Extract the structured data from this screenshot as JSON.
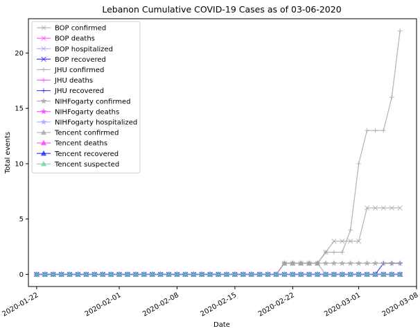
{
  "chart_data": {
    "type": "line",
    "title": "Lebanon Cumulative COVID-19 Cases as of 03-06-2020",
    "xlabel": "Date",
    "ylabel": "Total events",
    "x_range": [
      "2020-01-21",
      "2020-03-08"
    ],
    "ylim": [
      -1.1,
      23.1
    ],
    "x_ticks": [
      "2020-01-22",
      "2020-02-01",
      "2020-02-08",
      "2020-02-15",
      "2020-02-22",
      "2020-03-01",
      "2020-03-08"
    ],
    "y_ticks": [
      0,
      5,
      10,
      15,
      20
    ],
    "grid": false,
    "legend_position": "upper-left",
    "series": [
      {
        "name": "BOP confirmed",
        "color": "#a0a0a0",
        "marker": "x",
        "points": [
          [
            "2020-01-22",
            0
          ],
          [
            "2020-02-20",
            0
          ],
          [
            "2020-02-21",
            1
          ],
          [
            "2020-02-25",
            1
          ],
          [
            "2020-02-26",
            2
          ],
          [
            "2020-02-27",
            3
          ],
          [
            "2020-02-29",
            3
          ],
          [
            "2020-03-01",
            3
          ],
          [
            "2020-03-02",
            6
          ],
          [
            "2020-03-06",
            6
          ]
        ]
      },
      {
        "name": "BOP deaths",
        "color": "#ff33ff",
        "marker": "x",
        "points": [
          [
            "2020-01-22",
            0
          ],
          [
            "2020-03-06",
            0
          ]
        ]
      },
      {
        "name": "BOP hospitalized",
        "color": "#9fa0ff",
        "marker": "x",
        "points": [
          [
            "2020-01-22",
            0
          ],
          [
            "2020-03-06",
            0
          ]
        ]
      },
      {
        "name": "BOP recovered",
        "color": "#1515ff",
        "marker": "x",
        "points": [
          [
            "2020-01-22",
            0
          ],
          [
            "2020-03-06",
            0
          ]
        ]
      },
      {
        "name": "JHU confirmed",
        "color": "#a0a0a0",
        "marker": "+",
        "points": [
          [
            "2020-01-22",
            0
          ],
          [
            "2020-02-20",
            0
          ],
          [
            "2020-02-21",
            1
          ],
          [
            "2020-02-25",
            1
          ],
          [
            "2020-02-26",
            2
          ],
          [
            "2020-02-28",
            2
          ],
          [
            "2020-02-29",
            4
          ],
          [
            "2020-03-01",
            10
          ],
          [
            "2020-03-02",
            13
          ],
          [
            "2020-03-04",
            13
          ],
          [
            "2020-03-05",
            16
          ],
          [
            "2020-03-06",
            22
          ]
        ]
      },
      {
        "name": "JHU deaths",
        "color": "#ff33ff",
        "marker": "+",
        "points": [
          [
            "2020-01-22",
            0
          ],
          [
            "2020-03-06",
            0
          ]
        ]
      },
      {
        "name": "JHU recovered",
        "color": "#1515ff",
        "marker": "+",
        "points": [
          [
            "2020-01-22",
            0
          ],
          [
            "2020-03-03",
            0
          ],
          [
            "2020-03-04",
            1
          ],
          [
            "2020-03-06",
            1
          ]
        ]
      },
      {
        "name": "NIHFogarty confirmed",
        "color": "#a0a0a0",
        "marker": "*",
        "points": [
          [
            "2020-01-22",
            0
          ],
          [
            "2020-02-20",
            0
          ],
          [
            "2020-02-21",
            1
          ],
          [
            "2020-03-06",
            1
          ]
        ]
      },
      {
        "name": "NIHFogarty deaths",
        "color": "#ff33ff",
        "marker": "*",
        "points": [
          [
            "2020-01-22",
            0
          ],
          [
            "2020-03-06",
            0
          ]
        ]
      },
      {
        "name": "NIHFogarty hospitalized",
        "color": "#9fa0ff",
        "marker": "*",
        "points": [
          [
            "2020-01-22",
            0
          ],
          [
            "2020-03-06",
            0
          ]
        ]
      },
      {
        "name": "Tencent confirmed",
        "color": "#a0a0a0",
        "marker": "^",
        "points": [
          [
            "2020-01-22",
            0
          ],
          [
            "2020-02-20",
            0
          ],
          [
            "2020-02-21",
            1
          ],
          [
            "2020-02-25",
            1
          ],
          [
            "2020-02-26",
            0
          ],
          [
            "2020-03-06",
            0
          ]
        ]
      },
      {
        "name": "Tencent deaths",
        "color": "#ff33ff",
        "marker": "^",
        "points": [
          [
            "2020-01-22",
            0
          ],
          [
            "2020-03-06",
            0
          ]
        ]
      },
      {
        "name": "Tencent recovered",
        "color": "#1515ff",
        "marker": "^",
        "points": [
          [
            "2020-01-22",
            0
          ],
          [
            "2020-03-06",
            0
          ]
        ]
      },
      {
        "name": "Tencent suspected",
        "color": "#60d4a8",
        "marker": "^",
        "points": [
          [
            "2020-01-22",
            0
          ],
          [
            "2020-03-06",
            0
          ]
        ]
      }
    ]
  }
}
